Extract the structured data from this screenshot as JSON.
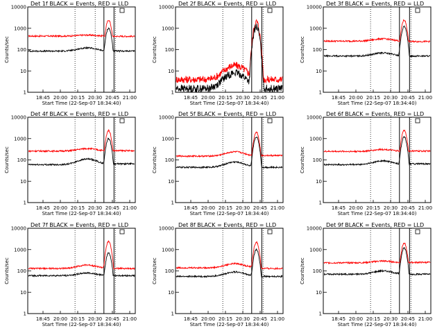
{
  "colors": {
    "events": "#000000",
    "lld": "#ff0000",
    "background": "#ffffff",
    "axis": "#000000"
  },
  "chart_data": {
    "type": "line",
    "yscale": "log",
    "ylim": [
      1,
      10000
    ],
    "y_ticks": [
      1,
      10,
      100,
      1000,
      10000
    ],
    "y_tick_labels": [
      "1",
      "10",
      "100",
      "1000",
      "10000"
    ],
    "xlim": [
      "18:34:40",
      "21:14:40"
    ],
    "x_ticks": [
      "18:45",
      "20:00",
      "20:15",
      "20:30",
      "20:45",
      "21:00"
    ],
    "vertical_dotted_lines": [
      "19:45",
      "20:15",
      "20:45"
    ],
    "ylabel": "Counts/sec",
    "xlabel": "Start Time (22-Sep-07 18:34:40)",
    "series_labels": {
      "events": "BLACK = Events",
      "lld": "RED = LLD"
    },
    "panels": [
      {
        "detector": "Det 1f",
        "title": "Det 1f BLACK = Events, RED = LLD",
        "events": {
          "baseline": 85,
          "hump": 120,
          "peak": 1000,
          "post": 85
        },
        "lld": {
          "baseline": 430,
          "hump": 480,
          "peak": 2400,
          "post": 420
        }
      },
      {
        "detector": "Det 2f",
        "title": "Det 2f BLACK = Events, RED = LLD",
        "events": {
          "baseline": 1.5,
          "hump": 8,
          "peak": 1200,
          "post": 1.5
        },
        "lld": {
          "baseline": 4,
          "hump": 18,
          "peak": 2000,
          "post": 4
        }
      },
      {
        "detector": "Det 3f",
        "title": "Det 3f BLACK = Events, RED = LLD",
        "events": {
          "baseline": 50,
          "hump": 70,
          "peak": 1200,
          "post": 50
        },
        "lld": {
          "baseline": 250,
          "hump": 320,
          "peak": 2400,
          "post": 240
        }
      },
      {
        "detector": "Det 4f",
        "title": "Det 4f BLACK = Events, RED = LLD",
        "events": {
          "baseline": 60,
          "hump": 110,
          "peak": 1000,
          "post": 65
        },
        "lld": {
          "baseline": 260,
          "hump": 340,
          "peak": 2400,
          "post": 270
        }
      },
      {
        "detector": "Det 5f",
        "title": "Det 5f BLACK = Events, RED = LLD",
        "events": {
          "baseline": 45,
          "hump": 80,
          "peak": 1200,
          "post": 45
        },
        "lld": {
          "baseline": 150,
          "hump": 240,
          "peak": 2000,
          "post": 160
        }
      },
      {
        "detector": "Det 6f",
        "title": "Det 6f BLACK = Events, RED = LLD",
        "events": {
          "baseline": 60,
          "hump": 90,
          "peak": 1200,
          "post": 65
        },
        "lld": {
          "baseline": 250,
          "hump": 310,
          "peak": 2400,
          "post": 260
        }
      },
      {
        "detector": "Det 7f",
        "title": "Det 7f BLACK = Events, RED = LLD",
        "events": {
          "baseline": 60,
          "hump": 80,
          "peak": 700,
          "post": 60
        },
        "lld": {
          "baseline": 130,
          "hump": 190,
          "peak": 2400,
          "post": 130
        }
      },
      {
        "detector": "Det 8f",
        "title": "Det 8f BLACK = Events, RED = LLD",
        "events": {
          "baseline": 55,
          "hump": 90,
          "peak": 1000,
          "post": 55
        },
        "lld": {
          "baseline": 140,
          "hump": 220,
          "peak": 2200,
          "post": 130
        }
      },
      {
        "detector": "Det 9f",
        "title": "Det 9f BLACK = Events, RED = LLD",
        "events": {
          "baseline": 70,
          "hump": 100,
          "peak": 1200,
          "post": 70
        },
        "lld": {
          "baseline": 240,
          "hump": 290,
          "peak": 2000,
          "post": 250
        }
      }
    ]
  }
}
